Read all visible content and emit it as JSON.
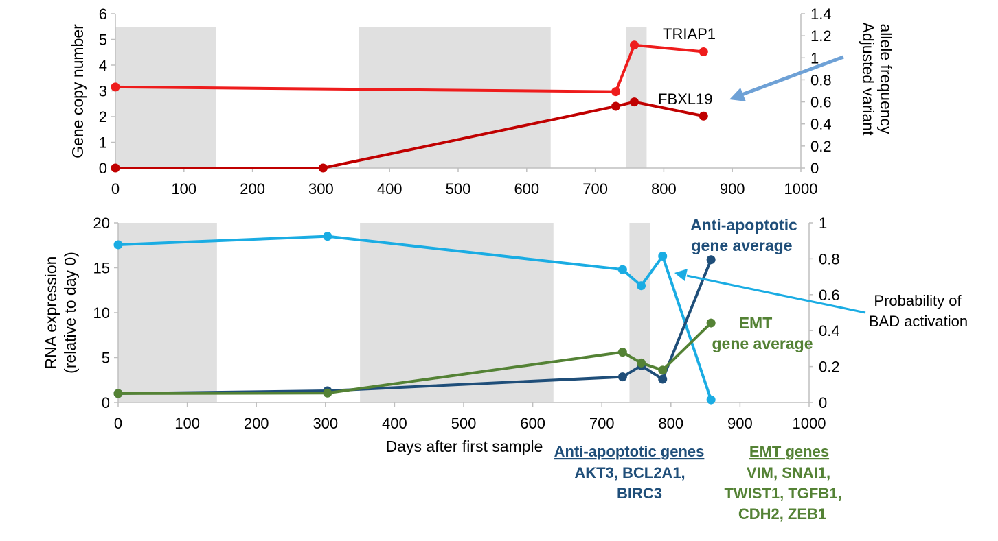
{
  "chart_data": [
    {
      "type": "line",
      "ylabel": "Gene copy number",
      "y2label_lines": [
        "Adjusted variant",
        "allele frequency"
      ],
      "xlim": [
        0,
        1000
      ],
      "ylim": [
        0,
        6
      ],
      "y2lim": [
        0,
        1.4
      ],
      "x_ticks": [
        "0",
        "100",
        "200",
        "300",
        "400",
        "500",
        "600",
        "700",
        "800",
        "900",
        "1000"
      ],
      "y_ticks": [
        "0",
        "1",
        "2",
        "3",
        "4",
        "5",
        "6"
      ],
      "y2_ticks": [
        "0",
        "0.2",
        "0.4",
        "0.6",
        "0.8",
        "1",
        "1.2",
        "1.4"
      ],
      "shaded_intervals": [
        [
          0,
          147
        ],
        [
          355,
          635
        ],
        [
          745,
          775
        ]
      ],
      "series": [
        {
          "name": "TRIAP1",
          "color": "#ee1c1c",
          "axis": "left",
          "x": [
            0,
            730,
            757,
            858
          ],
          "y": [
            3.15,
            2.97,
            4.78,
            4.52
          ]
        },
        {
          "name": "FBXL19",
          "color": "#c00000",
          "axis": "left",
          "x": [
            0,
            303,
            730,
            757,
            858
          ],
          "y": [
            0.0,
            0.0,
            2.4,
            2.57,
            2.02
          ]
        }
      ],
      "grid": false,
      "legend": "none"
    },
    {
      "type": "line",
      "ylabel_lines": [
        "RNA expression",
        "(relative to day 0)"
      ],
      "xlabel": "Days after first sample",
      "xlim": [
        0,
        1000
      ],
      "ylim": [
        0,
        20
      ],
      "y2lim": [
        0,
        1
      ],
      "x_ticks": [
        "0",
        "100",
        "200",
        "300",
        "400",
        "500",
        "600",
        "700",
        "800",
        "900",
        "1000"
      ],
      "y_ticks": [
        "0",
        "5",
        "10",
        "15",
        "20"
      ],
      "y2_ticks": [
        "0",
        "0.2",
        "0.4",
        "0.6",
        "0.8",
        "1"
      ],
      "shaded_intervals": [
        [
          0,
          143
        ],
        [
          350,
          630
        ],
        [
          740,
          770
        ]
      ],
      "series": [
        {
          "name": "Probability of BAD activation",
          "color": "#1aace3",
          "axis": "right",
          "x": [
            0,
            303,
            730,
            757,
            788,
            858
          ],
          "y": [
            0.878,
            0.925,
            0.74,
            0.65,
            0.815,
            0.015
          ]
        },
        {
          "name": "Anti-apoptotic gene average",
          "color": "#1f4e79",
          "axis": "left",
          "x": [
            0,
            303,
            730,
            757,
            788,
            858
          ],
          "y": [
            1.0,
            1.3,
            2.85,
            4.1,
            2.6,
            15.9
          ]
        },
        {
          "name": "EMT gene average",
          "color": "#548235",
          "axis": "left",
          "x": [
            0,
            303,
            730,
            757,
            788,
            858
          ],
          "y": [
            1.0,
            1.05,
            5.6,
            4.4,
            3.6,
            8.85
          ]
        }
      ],
      "grid": false,
      "legend": "none"
    }
  ],
  "annotations": {
    "triap1": "TRIAP1",
    "fbxl19": "FBXL19",
    "anti_label_lines": [
      "Anti-apoptotic",
      "gene average"
    ],
    "emt_label_lines": [
      "EMT",
      "gene average"
    ],
    "bad_label_lines": [
      "Probability of",
      "BAD activation"
    ]
  },
  "gene_lists": {
    "anti": {
      "heading": "Anti-apoptotic genes",
      "lines": [
        "AKT3, BCL2A1,",
        "BIRC3"
      ],
      "color": "#1f4e79"
    },
    "emt": {
      "heading": "EMT genes",
      "lines": [
        "VIM, SNAI1,",
        "TWIST1, TGFB1,",
        "CDH2, ZEB1"
      ],
      "color": "#548235"
    }
  },
  "colors": {
    "shade": "#e0e0e0",
    "axis": "#bfbfbf",
    "arrow": "#6ea1d6",
    "bad_arrow": "#1aace3"
  }
}
